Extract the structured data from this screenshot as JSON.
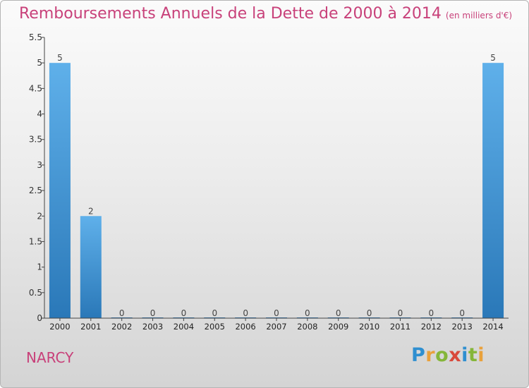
{
  "title": "Remboursements Annuels de la Dette de 2000 à 2014",
  "subtitle": "(en milliers d'€)",
  "commune": "NARCY",
  "logo": [
    "P",
    "r",
    "o",
    "x",
    "i",
    "t",
    "i"
  ],
  "colors": {
    "title": "#c8417a",
    "bar_top": "#5fb0ea",
    "bar_bottom": "#2a78b8",
    "axis": "#444444"
  },
  "chart_data": {
    "type": "bar",
    "title": "Remboursements Annuels de la Dette de 2000 à 2014",
    "subtitle": "(en milliers d'€)",
    "categories": [
      "2000",
      "2001",
      "2002",
      "2003",
      "2004",
      "2005",
      "2006",
      "2007",
      "2008",
      "2009",
      "2010",
      "2011",
      "2012",
      "2013",
      "2014"
    ],
    "values": [
      5,
      2,
      0,
      0,
      0,
      0,
      0,
      0,
      0,
      0,
      0,
      0,
      0,
      0,
      5
    ],
    "data_labels": [
      "5",
      "2",
      "0",
      "0",
      "0",
      "0",
      "0",
      "0",
      "0",
      "0",
      "0",
      "0",
      "0",
      "0",
      "5"
    ],
    "ylim": [
      0,
      5.5
    ],
    "yticks": [
      0,
      0.5,
      1,
      1.5,
      2,
      2.5,
      3,
      3.5,
      4,
      4.5,
      5,
      5.5
    ],
    "ytick_labels": [
      "0",
      "0.5",
      "1",
      "1.5",
      "2",
      "2.5",
      "3",
      "3.5",
      "4",
      "4.5",
      "5",
      "5.5"
    ],
    "xlabel": "",
    "ylabel": "",
    "grid": false,
    "legend": "none"
  }
}
